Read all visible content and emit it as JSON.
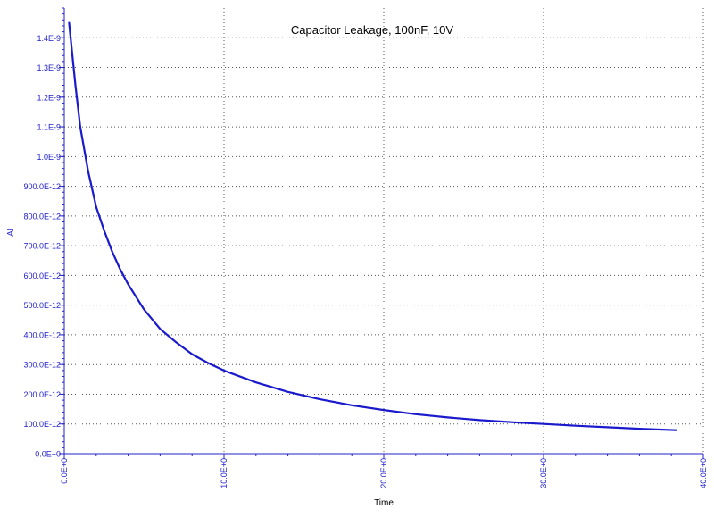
{
  "chart_data": {
    "type": "line",
    "title": "Capacitor Leakage, 100nF, 10V",
    "xlabel": "Time",
    "ylabel": "AI",
    "xlim": [
      0,
      40
    ],
    "ylim": [
      0,
      1.5e-09
    ],
    "x_ticks": [
      0,
      10,
      20,
      30,
      40
    ],
    "x_tick_labels": [
      "0.0E+0",
      "10.0E+0",
      "20.0E+0",
      "30.0E+0",
      "40.0E+0"
    ],
    "y_ticks": [
      0,
      1e-10,
      2e-10,
      3e-10,
      4e-10,
      5e-10,
      6e-10,
      7e-10,
      8e-10,
      9e-10,
      1e-09,
      1.1e-09,
      1.2e-09,
      1.3e-09,
      1.4e-09
    ],
    "y_tick_labels": [
      "0.0E+0",
      "100.0E-12",
      "200.0E-12",
      "300.0E-12",
      "400.0E-12",
      "500.0E-12",
      "600.0E-12",
      "700.0E-12",
      "800.0E-12",
      "900.0E-12",
      "1.0E-9",
      "1.1E-9",
      "1.2E-9",
      "1.3E-9",
      "1.4E-9"
    ],
    "grid": true,
    "colors": {
      "series": "#1a1acc",
      "axis": "#2222cc",
      "grid": "#555555"
    },
    "series": [
      {
        "x": [
          0.3,
          0.7,
          1,
          1.5,
          2,
          2.5,
          3,
          3.5,
          4,
          5,
          6,
          7,
          8,
          9,
          10,
          12,
          14,
          16,
          18,
          20,
          22,
          24,
          26,
          28,
          30,
          32,
          34,
          36,
          38.3
        ],
        "y": [
          1.45e-09,
          1.24e-09,
          1.1e-09,
          9.5e-10,
          8.3e-10,
          7.5e-10,
          6.8e-10,
          6.2e-10,
          5.7e-10,
          4.85e-10,
          4.2e-10,
          3.75e-10,
          3.35e-10,
          3.05e-10,
          2.8e-10,
          2.4e-10,
          2.08e-10,
          1.83e-10,
          1.63e-10,
          1.47e-10,
          1.33e-10,
          1.22e-10,
          1.13e-10,
          1.06e-10,
          1e-10,
          9.4e-11,
          8.9e-11,
          8.4e-11,
          7.9e-11
        ]
      }
    ]
  }
}
